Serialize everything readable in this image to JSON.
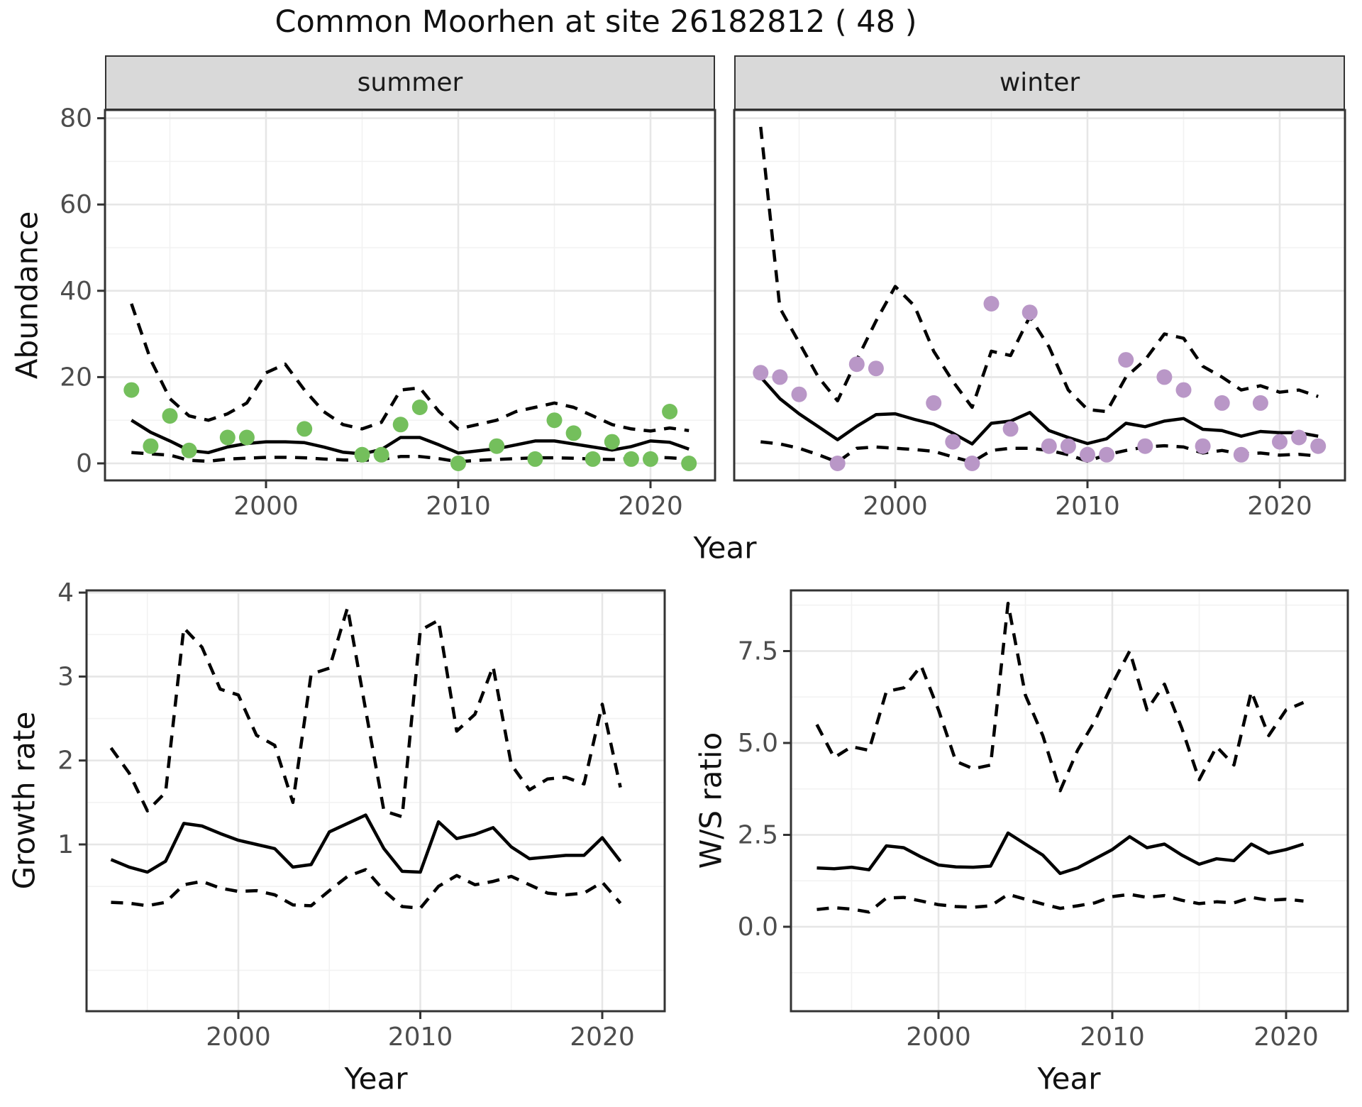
{
  "title": "Common Moorhen at site 26182812 ( 48 )",
  "facets": {
    "summer": "summer",
    "winter": "winter"
  },
  "labels": {
    "abundance": "Abundance",
    "growth_rate": "Growth rate",
    "ws_ratio": "W/S ratio",
    "year": "Year"
  },
  "colors": {
    "summer_points": "#74bf5c",
    "winter_points": "#b997c7",
    "line": "#000000",
    "panel_border": "#333333",
    "grid_major": "#e6e6e6",
    "grid_minor": "#f2f2f2",
    "tick_label": "#4d4d4d",
    "strip_bg": "#d9d9d9"
  },
  "chart_data": [
    {
      "id": "abundance_summer",
      "type": "line",
      "facet": "summer",
      "title": "Common Moorhen abundance, summer",
      "xlabel": "Year",
      "ylabel": "Abundance",
      "xlim": [
        1991.6,
        2023.4
      ],
      "ylim": [
        -3.9,
        81.9
      ],
      "grid": true,
      "legend": "none",
      "x": [
        1993,
        1994,
        1995,
        1996,
        1997,
        1998,
        1999,
        2000,
        2001,
        2002,
        2003,
        2004,
        2005,
        2006,
        2007,
        2008,
        2009,
        2010,
        2011,
        2012,
        2013,
        2014,
        2015,
        2016,
        2017,
        2018,
        2019,
        2020,
        2021,
        2022
      ],
      "series": [
        {
          "name": "median",
          "style": "solid",
          "values": [
            10,
            7.2,
            5.2,
            3,
            2.5,
            3.8,
            4.6,
            5,
            5,
            4.8,
            3.8,
            2.6,
            2.2,
            3.2,
            6,
            6,
            4.3,
            2.4,
            2.9,
            3.4,
            4.3,
            5.2,
            5.2,
            4.5,
            3.8,
            3.1,
            3.9,
            5.2,
            4.9,
            3.3
          ]
        },
        {
          "name": "upper_ci",
          "style": "dashed",
          "values": [
            37,
            24,
            15,
            11,
            10,
            11.5,
            14,
            21,
            23,
            17,
            12,
            9,
            8,
            9.5,
            17,
            17.5,
            12,
            8,
            9,
            10,
            12,
            13,
            14,
            13,
            11,
            9,
            8,
            7.5,
            8.2,
            7.6
          ]
        },
        {
          "name": "lower_ci",
          "style": "dashed",
          "values": [
            2.5,
            2.2,
            1.9,
            0.7,
            0.5,
            1,
            1.2,
            1.4,
            1.4,
            1.3,
            1,
            0.8,
            0.7,
            0.9,
            1.6,
            1.6,
            1.1,
            0.4,
            0.7,
            0.9,
            1.1,
            1.3,
            1.3,
            1.2,
            1,
            0.9,
            1.1,
            1.4,
            1.3,
            1
          ]
        }
      ],
      "points": [
        [
          1993,
          17
        ],
        [
          1994,
          4
        ],
        [
          1995,
          11
        ],
        [
          1996,
          3
        ],
        [
          1998,
          6
        ],
        [
          1999,
          6
        ],
        [
          2002,
          8
        ],
        [
          2005,
          2
        ],
        [
          2006,
          2
        ],
        [
          2007,
          9
        ],
        [
          2008,
          13
        ],
        [
          2010,
          0
        ],
        [
          2012,
          4
        ],
        [
          2014,
          1
        ],
        [
          2015,
          10
        ],
        [
          2016,
          7
        ],
        [
          2017,
          1
        ],
        [
          2018,
          5
        ],
        [
          2019,
          1
        ],
        [
          2020,
          1
        ],
        [
          2021,
          12
        ],
        [
          2022,
          0
        ]
      ],
      "x_ticks": [
        {
          "v": 2000,
          "label": "2000"
        },
        {
          "v": 2010,
          "label": "2010"
        },
        {
          "v": 2020,
          "label": "2020"
        }
      ],
      "y_ticks": [
        {
          "v": 0,
          "label": "0"
        },
        {
          "v": 20,
          "label": "20"
        },
        {
          "v": 40,
          "label": "40"
        },
        {
          "v": 60,
          "label": "60"
        },
        {
          "v": 80,
          "label": "80"
        }
      ]
    },
    {
      "id": "abundance_winter",
      "type": "line",
      "facet": "winter",
      "title": "Common Moorhen abundance, winter",
      "xlabel": "Year",
      "ylabel": "Abundance",
      "xlim": [
        1991.6,
        2023.4
      ],
      "ylim": [
        -3.9,
        81.9
      ],
      "grid": true,
      "legend": "none",
      "x": [
        1993,
        1994,
        1995,
        1996,
        1997,
        1998,
        1999,
        2000,
        2001,
        2002,
        2003,
        2004,
        2005,
        2006,
        2007,
        2008,
        2009,
        2010,
        2011,
        2012,
        2013,
        2014,
        2015,
        2016,
        2017,
        2018,
        2019,
        2020,
        2021,
        2022
      ],
      "series": [
        {
          "name": "median",
          "style": "solid",
          "values": [
            20,
            15,
            11.5,
            8.5,
            5.5,
            8.6,
            11.3,
            11.5,
            10.2,
            9.1,
            7,
            4.5,
            9.3,
            9.8,
            11.8,
            7.6,
            6,
            4.6,
            5.7,
            9.3,
            8.5,
            9.8,
            10.4,
            7.9,
            7.6,
            6.3,
            7.4,
            7.1,
            7.1,
            6.3
          ]
        },
        {
          "name": "upper_ci",
          "style": "dashed",
          "values": [
            78,
            36,
            28,
            20,
            14.5,
            24,
            33,
            41,
            36.5,
            26,
            19,
            13,
            26,
            25,
            34,
            27,
            17,
            12.5,
            12,
            20,
            24,
            30,
            29,
            22.5,
            20,
            17,
            18,
            16.5,
            17,
            15.5
          ]
        },
        {
          "name": "lower_ci",
          "style": "dashed",
          "values": [
            5,
            4.5,
            3.5,
            2,
            0.3,
            3.5,
            3.8,
            3.5,
            3.2,
            2.8,
            1.5,
            0.3,
            3,
            3.5,
            3.5,
            3,
            2,
            0.5,
            2,
            3,
            3.8,
            4.1,
            3.8,
            2.4,
            3,
            2.2,
            2.4,
            1.9,
            2.1,
            1.7
          ]
        }
      ],
      "points": [
        [
          1993,
          21
        ],
        [
          1994,
          20
        ],
        [
          1995,
          16
        ],
        [
          1997,
          0
        ],
        [
          1998,
          23
        ],
        [
          1999,
          22
        ],
        [
          2002,
          14
        ],
        [
          2003,
          5
        ],
        [
          2004,
          0
        ],
        [
          2005,
          37
        ],
        [
          2006,
          8
        ],
        [
          2007,
          35
        ],
        [
          2008,
          4
        ],
        [
          2009,
          4
        ],
        [
          2010,
          2
        ],
        [
          2011,
          2
        ],
        [
          2012,
          24
        ],
        [
          2013,
          4
        ],
        [
          2014,
          20
        ],
        [
          2015,
          17
        ],
        [
          2016,
          4
        ],
        [
          2017,
          14
        ],
        [
          2018,
          2
        ],
        [
          2019,
          14
        ],
        [
          2020,
          5
        ],
        [
          2021,
          6
        ],
        [
          2022,
          4
        ]
      ],
      "x_ticks": [
        {
          "v": 2000,
          "label": "2000"
        },
        {
          "v": 2010,
          "label": "2010"
        },
        {
          "v": 2020,
          "label": "2020"
        }
      ],
      "y_ticks": [
        {
          "v": 0,
          "label": "0"
        },
        {
          "v": 20,
          "label": "20"
        },
        {
          "v": 40,
          "label": "40"
        },
        {
          "v": 60,
          "label": "60"
        },
        {
          "v": 80,
          "label": "80"
        }
      ]
    },
    {
      "id": "growth_rate",
      "type": "line",
      "title": "Growth rate",
      "xlabel": "Year",
      "ylabel": "Growth rate",
      "xlim": [
        1991.7,
        2023.4
      ],
      "ylim": [
        -0.99,
        4.03
      ],
      "grid": true,
      "legend": "none",
      "x": [
        1993,
        1994,
        1995,
        1996,
        1997,
        1998,
        1999,
        2000,
        2001,
        2002,
        2003,
        2004,
        2005,
        2006,
        2007,
        2008,
        2009,
        2010,
        2011,
        2012,
        2013,
        2014,
        2015,
        2016,
        2017,
        2018,
        2019,
        2020,
        2021
      ],
      "series": [
        {
          "name": "median",
          "style": "solid",
          "values": [
            0.82,
            0.73,
            0.67,
            0.8,
            1.25,
            1.22,
            1.13,
            1.05,
            1,
            0.95,
            0.73,
            0.76,
            1.15,
            1.25,
            1.35,
            0.95,
            0.68,
            0.67,
            1.27,
            1.07,
            1.12,
            1.2,
            0.97,
            0.83,
            0.85,
            0.87,
            0.87,
            1.08,
            0.8
          ]
        },
        {
          "name": "upper_ci",
          "style": "dashed",
          "values": [
            2.15,
            1.85,
            1.4,
            1.62,
            3.58,
            3.35,
            2.85,
            2.78,
            2.3,
            2.18,
            1.5,
            3.03,
            3.1,
            3.82,
            2.6,
            1.4,
            1.33,
            3.55,
            3.67,
            2.35,
            2.55,
            3.12,
            1.95,
            1.65,
            1.78,
            1.8,
            1.72,
            2.67,
            1.68
          ]
        },
        {
          "name": "lower_ci",
          "style": "dashed",
          "values": [
            0.31,
            0.3,
            0.27,
            0.31,
            0.52,
            0.56,
            0.48,
            0.44,
            0.45,
            0.4,
            0.28,
            0.27,
            0.45,
            0.62,
            0.7,
            0.45,
            0.26,
            0.24,
            0.5,
            0.63,
            0.52,
            0.56,
            0.62,
            0.52,
            0.42,
            0.4,
            0.42,
            0.55,
            0.3
          ]
        }
      ],
      "points": [],
      "x_ticks": [
        {
          "v": 2000,
          "label": "2000"
        },
        {
          "v": 2010,
          "label": "2010"
        },
        {
          "v": 2020,
          "label": "2020"
        }
      ],
      "y_ticks": [
        {
          "v": 1,
          "label": "1"
        },
        {
          "v": 2,
          "label": "2"
        },
        {
          "v": 3,
          "label": "3"
        },
        {
          "v": 4,
          "label": "4"
        }
      ]
    },
    {
      "id": "ws_ratio",
      "type": "line",
      "title": "Winter/Summer ratio",
      "xlabel": "Year",
      "ylabel": "W/S ratio",
      "xlim": [
        1991.5,
        2023.6
      ],
      "ylim": [
        -2.3,
        9.15
      ],
      "grid": true,
      "legend": "none",
      "x": [
        1993,
        1994,
        1995,
        1996,
        1997,
        1998,
        1999,
        2000,
        2001,
        2002,
        2003,
        2004,
        2005,
        2006,
        2007,
        2008,
        2009,
        2010,
        2011,
        2012,
        2013,
        2014,
        2015,
        2016,
        2017,
        2018,
        2019,
        2020,
        2021
      ],
      "series": [
        {
          "name": "median",
          "style": "solid",
          "values": [
            1.6,
            1.58,
            1.62,
            1.55,
            2.2,
            2.15,
            1.9,
            1.68,
            1.63,
            1.62,
            1.65,
            2.55,
            2.25,
            1.95,
            1.45,
            1.6,
            1.85,
            2.1,
            2.45,
            2.15,
            2.25,
            1.95,
            1.7,
            1.85,
            1.8,
            2.25,
            2,
            2.1,
            2.25
          ]
        },
        {
          "name": "upper_ci",
          "style": "dashed",
          "values": [
            5.5,
            4.6,
            4.9,
            4.8,
            6.4,
            6.5,
            7.1,
            5.9,
            4.5,
            4.3,
            4.4,
            8.8,
            6.3,
            5.2,
            3.7,
            4.8,
            5.6,
            6.6,
            7.5,
            5.9,
            6.6,
            5.4,
            4,
            4.9,
            4.4,
            6.4,
            5.2,
            5.9,
            6.1
          ]
        },
        {
          "name": "lower_ci",
          "style": "dashed",
          "values": [
            0.47,
            0.52,
            0.48,
            0.4,
            0.78,
            0.8,
            0.7,
            0.6,
            0.55,
            0.53,
            0.57,
            0.88,
            0.75,
            0.62,
            0.5,
            0.57,
            0.65,
            0.82,
            0.88,
            0.8,
            0.85,
            0.72,
            0.63,
            0.68,
            0.65,
            0.8,
            0.72,
            0.75,
            0.7
          ]
        }
      ],
      "points": [],
      "x_ticks": [
        {
          "v": 2000,
          "label": "2000"
        },
        {
          "v": 2010,
          "label": "2010"
        },
        {
          "v": 2020,
          "label": "2020"
        }
      ],
      "y_ticks": [
        {
          "v": 0,
          "label": "0.0"
        },
        {
          "v": 2.5,
          "label": "2.5"
        },
        {
          "v": 5,
          "label": "5.0"
        },
        {
          "v": 7.5,
          "label": "7.5"
        }
      ]
    }
  ]
}
